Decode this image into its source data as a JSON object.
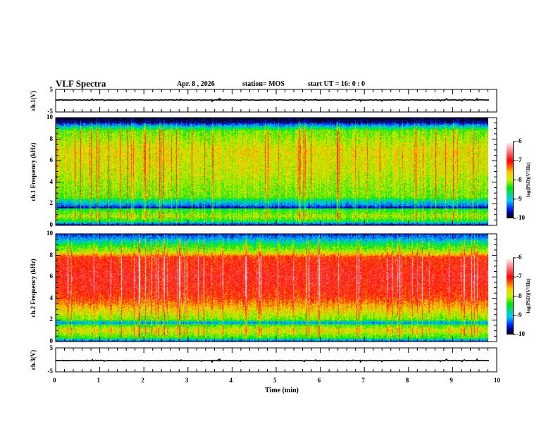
{
  "header": {
    "title": "VLF Spectra",
    "date": "Apr. 8 , 2026",
    "station": "station= MOS",
    "start": "start  UT =   16: 0  : 0"
  },
  "chart_data": [
    {
      "type": "line",
      "name": "ch1-waveform",
      "ylabel": "ch.1(V)",
      "ylim": [
        -5,
        5
      ],
      "yticks": [
        "5",
        "-5"
      ],
      "baseline": 0
    },
    {
      "type": "heatmap",
      "name": "ch1-spectrogram",
      "ylabel": "ch.1 Frequency (kHz)",
      "ylim": [
        0,
        10
      ],
      "yticks": [
        "0",
        "2",
        "4",
        "6",
        "8",
        "10"
      ],
      "colorbar": {
        "label": "log(PSD)(V²/Hz)",
        "range": [
          -10,
          -6
        ],
        "ticks": [
          "-6",
          "-7",
          "-8",
          "-9",
          "-10"
        ]
      },
      "profile_khz_logpsd": [
        [
          0,
          -9.8
        ],
        [
          0.3,
          -8.6
        ],
        [
          0.8,
          -8.0
        ],
        [
          1.5,
          -8.5
        ],
        [
          1.6,
          -9.9
        ],
        [
          1.8,
          -9.3
        ],
        [
          2.2,
          -8.9
        ],
        [
          2.6,
          -8.2
        ],
        [
          5,
          -7.9
        ],
        [
          7,
          -7.8
        ],
        [
          8.8,
          -8.2
        ],
        [
          9.2,
          -9.0
        ],
        [
          9.6,
          -9.8
        ],
        [
          10,
          -10
        ]
      ]
    },
    {
      "type": "heatmap",
      "name": "ch2-spectrogram",
      "ylabel": "ch.2 Frequency (kHz)",
      "ylim": [
        0,
        10
      ],
      "yticks": [
        "0",
        "2",
        "4",
        "6",
        "8",
        "10"
      ],
      "colorbar": {
        "label": "log(PSD)(V²/Hz)",
        "range": [
          -10,
          -6
        ],
        "ticks": [
          "-6",
          "-7",
          "-8",
          "-9",
          "-10"
        ]
      },
      "profile_khz_logpsd": [
        [
          0,
          -9.5
        ],
        [
          0.3,
          -8.4
        ],
        [
          1.0,
          -7.8
        ],
        [
          1.5,
          -8.3
        ],
        [
          1.7,
          -9.3
        ],
        [
          2.0,
          -8.2
        ],
        [
          3,
          -7.7
        ],
        [
          4.2,
          -7.1
        ],
        [
          6,
          -6.9
        ],
        [
          7.8,
          -7.1
        ],
        [
          8.3,
          -7.9
        ],
        [
          9,
          -8.5
        ],
        [
          9.6,
          -9.2
        ],
        [
          10,
          -9.5
        ]
      ]
    },
    {
      "type": "line",
      "name": "ch3-waveform",
      "ylabel": "ch.3(V)",
      "ylim": [
        -5,
        5
      ],
      "yticks": [
        "5",
        "-5"
      ],
      "baseline": 0
    }
  ],
  "xaxis": {
    "label": "Time  (min)",
    "ticks": [
      "0",
      "1",
      "2",
      "3",
      "4",
      "5",
      "6",
      "7",
      "8",
      "9",
      "10"
    ],
    "range": [
      0,
      10
    ],
    "data_end": 9.84
  }
}
